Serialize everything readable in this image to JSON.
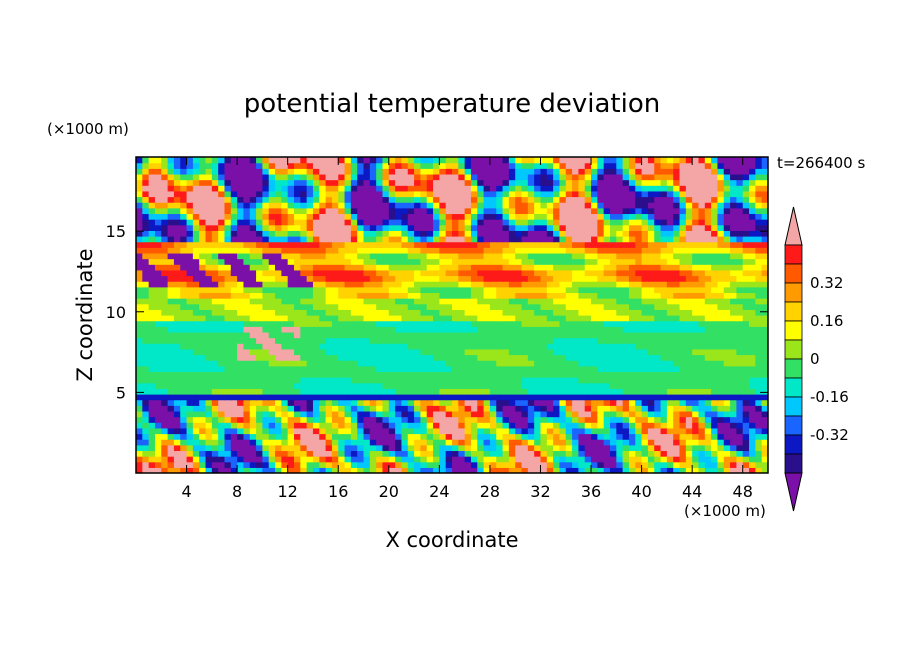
{
  "chart_data": {
    "type": "heatmap",
    "title": "potential temperature deviation",
    "xlabel": "X coordinate",
    "ylabel": "Z coordinate",
    "x_unit": "(×1000 m)",
    "y_unit": "(×1000 m)",
    "time_label": "t=266400 s",
    "xlim": [
      0,
      50
    ],
    "ylim": [
      0,
      19.6
    ],
    "x_ticks": [
      4,
      8,
      12,
      16,
      20,
      24,
      28,
      32,
      36,
      40,
      44,
      48
    ],
    "y_ticks": [
      5,
      10,
      15
    ],
    "colorbar": {
      "levels": [
        -0.48,
        -0.4,
        -0.32,
        -0.24,
        -0.16,
        -0.08,
        0,
        0.08,
        0.16,
        0.24,
        0.32,
        0.4,
        0.48
      ],
      "colors": [
        "#7a10a8",
        "#2a0f8c",
        "#0c18c4",
        "#1a64ff",
        "#00c8ff",
        "#00e8c8",
        "#32e064",
        "#9ae61a",
        "#ffff00",
        "#ffd200",
        "#ff9a00",
        "#ff5a00",
        "#ff1a1a",
        "#f4a6a6"
      ],
      "tick_labels": [
        "0.32",
        "0.16",
        "0",
        "-0.16",
        "-0.32"
      ],
      "tick_values": [
        0.32,
        0.16,
        0,
        -0.16,
        -0.32
      ]
    }
  }
}
